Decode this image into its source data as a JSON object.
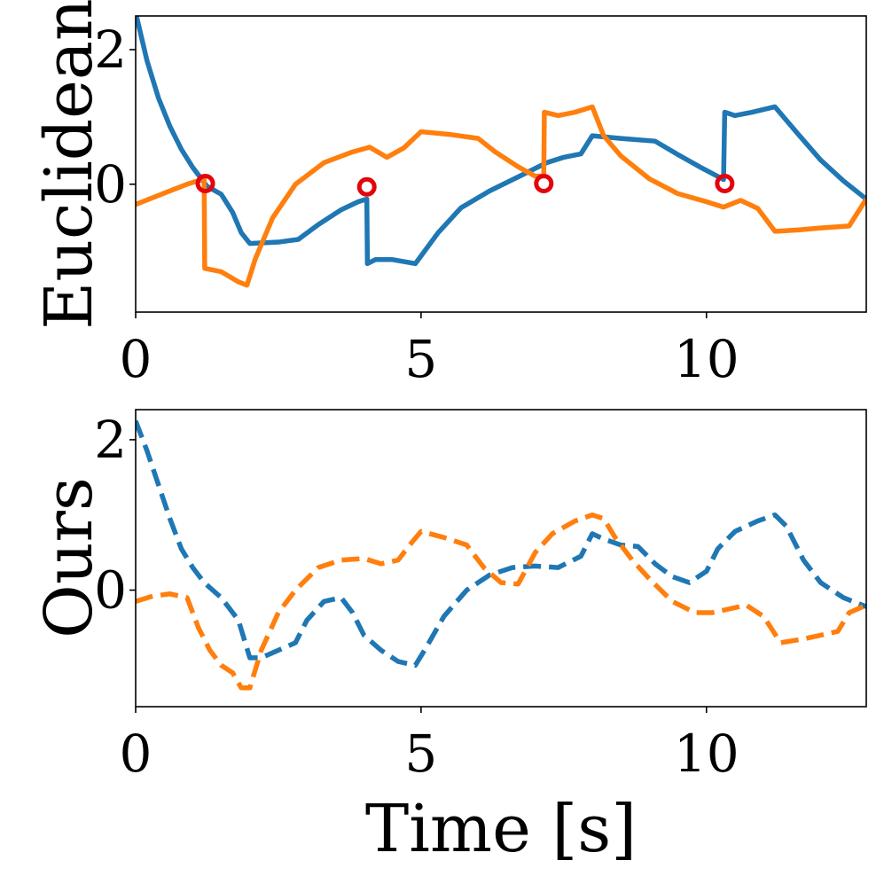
{
  "chart_data": [
    {
      "type": "line",
      "ylabel": "Euclidean",
      "xlabel": "",
      "xlim": [
        0,
        12.8
      ],
      "ylim": [
        -1.9,
        2.5
      ],
      "xticks": [
        0,
        5,
        10
      ],
      "xtick_labels": [
        "0",
        "5",
        "10"
      ],
      "yticks": [
        0,
        2
      ],
      "ytick_labels": [
        "0",
        "2"
      ],
      "series": [
        {
          "name": "blue",
          "color": "#1f77b4",
          "dash": "solid",
          "x": [
            0,
            0.2,
            0.4,
            0.6,
            0.8,
            1.0,
            1.25,
            1.5,
            1.7,
            1.85,
            2.0,
            2.5,
            2.85,
            3.2,
            3.6,
            3.9,
            4.05,
            4.06,
            4.2,
            4.5,
            4.9,
            5.3,
            5.7,
            6.2,
            6.8,
            7.2,
            7.5,
            7.8,
            8.0,
            8.5,
            9.1,
            9.5,
            9.9,
            10.3,
            10.32,
            10.5,
            10.8,
            11.2,
            11.6,
            12.0,
            12.4,
            12.8
          ],
          "y": [
            2.55,
            1.83,
            1.28,
            0.86,
            0.52,
            0.25,
            -0.03,
            -0.15,
            -0.42,
            -0.72,
            -0.88,
            -0.86,
            -0.82,
            -0.6,
            -0.38,
            -0.26,
            -0.22,
            -1.18,
            -1.12,
            -1.12,
            -1.18,
            -0.72,
            -0.35,
            -0.1,
            0.15,
            0.32,
            0.4,
            0.45,
            0.72,
            0.68,
            0.64,
            0.44,
            0.25,
            0.07,
            1.07,
            1.02,
            1.07,
            1.15,
            0.75,
            0.36,
            0.05,
            -0.22
          ]
        },
        {
          "name": "orange",
          "color": "#ff7f0e",
          "dash": "solid",
          "x": [
            0,
            0.3,
            0.6,
            0.9,
            1.2,
            1.21,
            1.5,
            1.8,
            1.95,
            2.1,
            2.4,
            2.8,
            3.3,
            3.8,
            4.1,
            4.4,
            4.7,
            5.0,
            5.5,
            6.0,
            6.3,
            6.7,
            7.0,
            7.15,
            7.16,
            7.4,
            7.7,
            8.0,
            8.2,
            8.5,
            9.0,
            9.5,
            10.0,
            10.3,
            10.6,
            10.9,
            11.2,
            11.6,
            12.0,
            12.5,
            12.8
          ],
          "y": [
            -0.3,
            -0.2,
            -0.1,
            0.0,
            0.08,
            -1.25,
            -1.3,
            -1.45,
            -1.5,
            -1.1,
            -0.5,
            0.0,
            0.32,
            0.48,
            0.55,
            0.4,
            0.54,
            0.78,
            0.74,
            0.68,
            0.48,
            0.26,
            0.12,
            0.12,
            1.07,
            1.02,
            1.07,
            1.15,
            0.72,
            0.42,
            0.08,
            -0.14,
            -0.26,
            -0.34,
            -0.24,
            -0.36,
            -0.7,
            -0.68,
            -0.65,
            -0.62,
            -0.22
          ]
        }
      ],
      "markers": {
        "color": "#e3050d",
        "points": [
          {
            "x": 1.22,
            "y": 0.01
          },
          {
            "x": 4.05,
            "y": -0.04
          },
          {
            "x": 7.15,
            "y": 0.01
          },
          {
            "x": 10.32,
            "y": 0.01
          }
        ]
      }
    },
    {
      "type": "line",
      "ylabel": "Ours",
      "xlabel": "Time [s]",
      "xlim": [
        0,
        12.8
      ],
      "ylim": [
        -1.55,
        2.4
      ],
      "xticks": [
        0,
        5,
        10
      ],
      "xtick_labels": [
        "0",
        "5",
        "10"
      ],
      "yticks": [
        0,
        2
      ],
      "ytick_labels": [
        "0",
        "2"
      ],
      "series": [
        {
          "name": "blue",
          "color": "#1f77b4",
          "dash": "dashed",
          "x": [
            0,
            0.2,
            0.4,
            0.6,
            0.8,
            1.0,
            1.2,
            1.5,
            1.8,
            2.0,
            2.2,
            2.5,
            2.8,
            3.0,
            3.3,
            3.6,
            3.8,
            4.0,
            4.3,
            4.6,
            4.9,
            5.1,
            5.4,
            5.8,
            6.2,
            6.6,
            7.0,
            7.4,
            7.8,
            8.0,
            8.2,
            8.5,
            8.8,
            9.1,
            9.4,
            9.7,
            10.0,
            10.2,
            10.5,
            10.9,
            11.2,
            11.4,
            11.7,
            12.0,
            12.4,
            12.8
          ],
          "y": [
            2.25,
            1.85,
            1.4,
            0.95,
            0.55,
            0.3,
            0.1,
            -0.1,
            -0.4,
            -0.9,
            -0.9,
            -0.8,
            -0.7,
            -0.4,
            -0.15,
            -0.1,
            -0.3,
            -0.6,
            -0.8,
            -0.95,
            -1.0,
            -0.75,
            -0.35,
            0.0,
            0.2,
            0.3,
            0.32,
            0.3,
            0.45,
            0.75,
            0.68,
            0.6,
            0.58,
            0.35,
            0.18,
            0.1,
            0.25,
            0.55,
            0.78,
            0.92,
            1.0,
            0.85,
            0.4,
            0.1,
            -0.1,
            -0.22
          ]
        },
        {
          "name": "orange",
          "color": "#ff7f0e",
          "dash": "dashed",
          "x": [
            0,
            0.3,
            0.6,
            0.9,
            1.1,
            1.3,
            1.5,
            1.7,
            1.85,
            2.0,
            2.2,
            2.5,
            2.8,
            3.2,
            3.6,
            4.0,
            4.3,
            4.6,
            4.8,
            5.0,
            5.4,
            5.8,
            6.1,
            6.4,
            6.7,
            7.0,
            7.3,
            7.7,
            8.0,
            8.2,
            8.4,
            8.7,
            9.0,
            9.4,
            9.8,
            10.1,
            10.4,
            10.7,
            11.0,
            11.3,
            11.7,
            12.0,
            12.3,
            12.5,
            12.8
          ],
          "y": [
            -0.15,
            -0.08,
            -0.05,
            -0.1,
            -0.5,
            -0.8,
            -1.0,
            -1.1,
            -1.3,
            -1.3,
            -0.8,
            -0.3,
            0.0,
            0.3,
            0.4,
            0.42,
            0.35,
            0.4,
            0.6,
            0.78,
            0.7,
            0.6,
            0.3,
            0.1,
            0.08,
            0.5,
            0.75,
            0.92,
            1.0,
            0.95,
            0.7,
            0.4,
            0.15,
            -0.15,
            -0.3,
            -0.3,
            -0.25,
            -0.2,
            -0.35,
            -0.7,
            -0.65,
            -0.6,
            -0.55,
            -0.3,
            -0.2
          ]
        }
      ]
    }
  ]
}
